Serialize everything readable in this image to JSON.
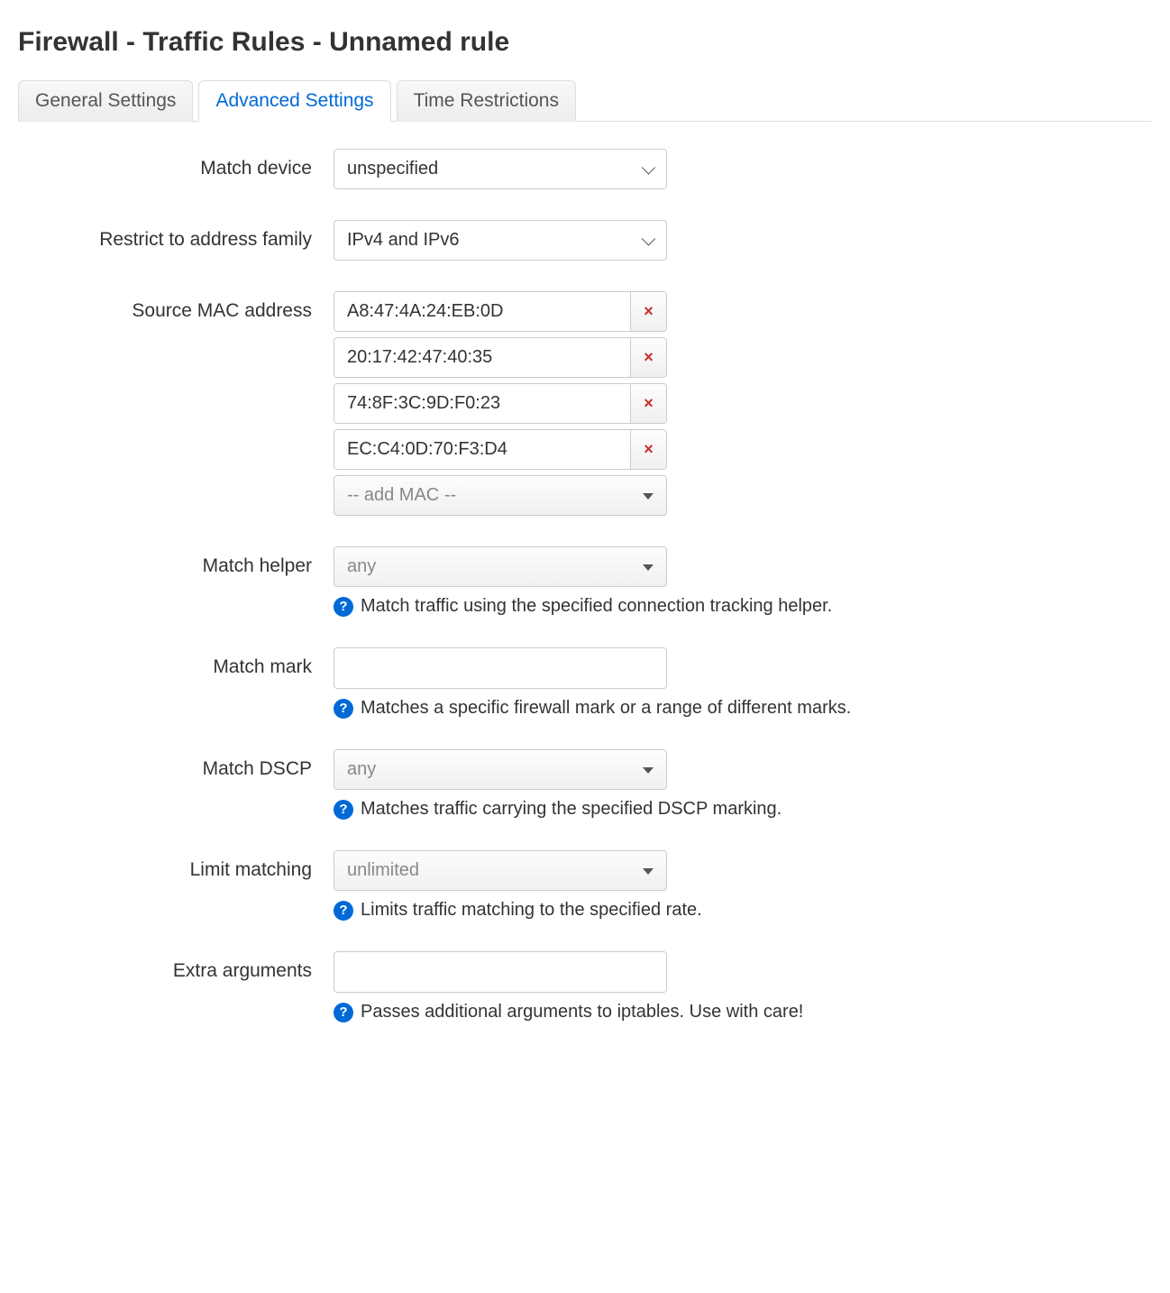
{
  "page": {
    "title": "Firewall - Traffic Rules - Unnamed rule"
  },
  "tabs": {
    "general": "General Settings",
    "advanced": "Advanced Settings",
    "time": "Time Restrictions",
    "active": "advanced"
  },
  "fields": {
    "match_device": {
      "label": "Match device",
      "value": "unspecified"
    },
    "address_family": {
      "label": "Restrict to address family",
      "value": "IPv4 and IPv6"
    },
    "source_mac": {
      "label": "Source MAC address",
      "values": [
        "A8:47:4A:24:EB:0D",
        "20:17:42:47:40:35",
        "74:8F:3C:9D:F0:23",
        "EC:C4:0D:70:F3:D4"
      ],
      "add_placeholder": "-- add MAC --"
    },
    "match_helper": {
      "label": "Match helper",
      "value": "any",
      "hint": "Match traffic using the specified connection tracking helper."
    },
    "match_mark": {
      "label": "Match mark",
      "value": "",
      "hint": "Matches a specific firewall mark or a range of different marks."
    },
    "match_dscp": {
      "label": "Match DSCP",
      "value": "any",
      "hint": "Matches traffic carrying the specified DSCP marking."
    },
    "limit_matching": {
      "label": "Limit matching",
      "value": "unlimited",
      "hint": "Limits traffic matching to the specified rate."
    },
    "extra_args": {
      "label": "Extra arguments",
      "value": "",
      "hint": "Passes additional arguments to iptables. Use with care!"
    }
  },
  "colors": {
    "link_active": "#0069d6",
    "remove_icon": "#c9302c",
    "border": "#cccccc",
    "text": "#333333",
    "muted": "#888888"
  }
}
